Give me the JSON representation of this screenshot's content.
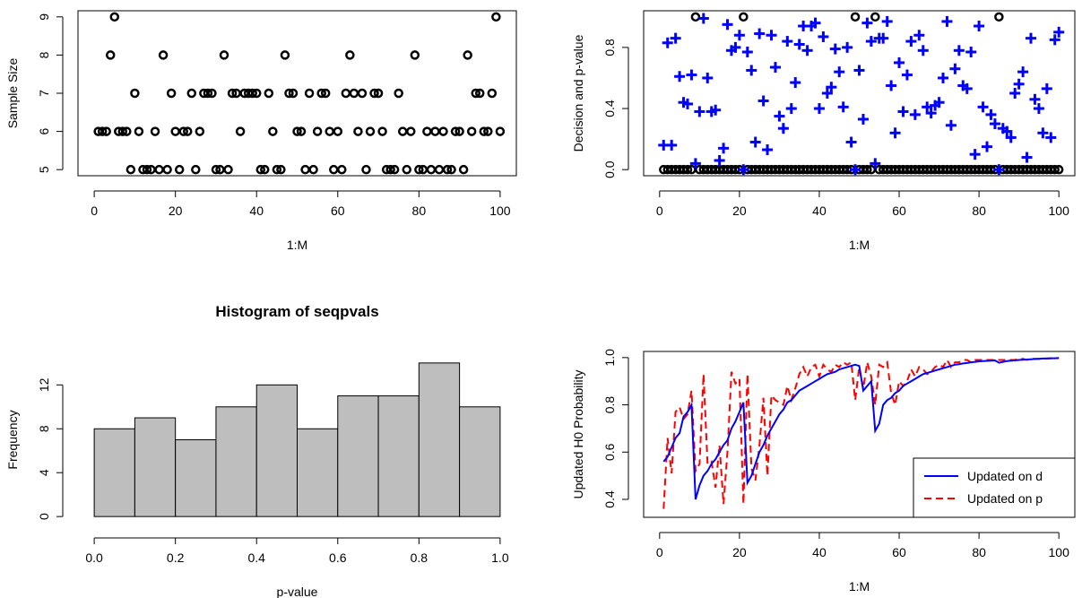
{
  "chart_data": [
    {
      "type": "scatter",
      "title": "",
      "xlabel": "1:M",
      "ylabel": "Sample Size",
      "xlim": [
        0,
        100
      ],
      "ylim": [
        5,
        9
      ],
      "xticks": [
        "0",
        "20",
        "40",
        "60",
        "80",
        "100"
      ],
      "yticks": [
        "5",
        "6",
        "7",
        "8",
        "9"
      ],
      "series": [
        {
          "marker": "circle",
          "color": "#000000",
          "x": [
            1,
            2,
            3,
            4,
            5,
            6,
            7,
            8,
            9,
            10,
            11,
            12,
            13,
            14,
            15,
            16,
            17,
            18,
            19,
            20,
            21,
            22,
            23,
            24,
            25,
            26,
            27,
            28,
            29,
            30,
            31,
            32,
            33,
            34,
            35,
            36,
            37,
            38,
            39,
            40,
            41,
            42,
            43,
            44,
            45,
            46,
            47,
            48,
            49,
            50,
            51,
            52,
            53,
            54,
            55,
            56,
            57,
            58,
            59,
            60,
            61,
            62,
            63,
            64,
            65,
            66,
            67,
            68,
            69,
            70,
            71,
            72,
            73,
            74,
            75,
            76,
            77,
            78,
            79,
            80,
            81,
            82,
            83,
            84,
            85,
            86,
            87,
            88,
            89,
            90,
            91,
            92,
            93,
            94,
            95,
            96,
            97,
            98,
            99,
            100
          ],
          "y": [
            6,
            6,
            6,
            8,
            9,
            6,
            6,
            6,
            5,
            7,
            6,
            5,
            5,
            5,
            6,
            5,
            8,
            5,
            7,
            6,
            5,
            6,
            6,
            7,
            5,
            6,
            7,
            7,
            7,
            5,
            5,
            8,
            5,
            7,
            7,
            6,
            7,
            7,
            7,
            7,
            5,
            5,
            7,
            6,
            5,
            5,
            8,
            7,
            7,
            6,
            6,
            5,
            7,
            5,
            6,
            7,
            7,
            6,
            5,
            6,
            5,
            7,
            8,
            7,
            6,
            7,
            5,
            6,
            7,
            7,
            6,
            5,
            5,
            5,
            7,
            6,
            5,
            6,
            8,
            5,
            5,
            6,
            5,
            6,
            5,
            6,
            5,
            5,
            6,
            6,
            5,
            8,
            6,
            7,
            7,
            6,
            6,
            7,
            9,
            6
          ]
        }
      ]
    },
    {
      "type": "scatter",
      "title": "",
      "xlabel": "1:M",
      "ylabel": "Decision and p-value",
      "xlim": [
        0,
        100
      ],
      "ylim": [
        0,
        1
      ],
      "xticks": [
        "0",
        "20",
        "40",
        "60",
        "80",
        "100"
      ],
      "yticks": [
        "0.0",
        "0.4",
        "0.8"
      ],
      "series": [
        {
          "marker": "circle",
          "color": "#000000",
          "x": [
            1,
            2,
            3,
            4,
            5,
            6,
            7,
            8,
            9,
            10,
            11,
            12,
            13,
            14,
            15,
            16,
            17,
            18,
            19,
            20,
            21,
            22,
            23,
            24,
            25,
            26,
            27,
            28,
            29,
            30,
            31,
            32,
            33,
            34,
            35,
            36,
            37,
            38,
            39,
            40,
            41,
            42,
            43,
            44,
            45,
            46,
            47,
            48,
            49,
            50,
            51,
            52,
            53,
            54,
            55,
            56,
            57,
            58,
            59,
            60,
            61,
            62,
            63,
            64,
            65,
            66,
            67,
            68,
            69,
            70,
            71,
            72,
            73,
            74,
            75,
            76,
            77,
            78,
            79,
            80,
            81,
            82,
            83,
            84,
            85,
            86,
            87,
            88,
            89,
            90,
            91,
            92,
            93,
            94,
            95,
            96,
            97,
            98,
            99,
            100
          ],
          "y": [
            0,
            0,
            0,
            0,
            0,
            0,
            0,
            0,
            1,
            0,
            0,
            0,
            0,
            0,
            0,
            0,
            0,
            0,
            0,
            0,
            1,
            0,
            0,
            0,
            0,
            0,
            0,
            0,
            0,
            0,
            0,
            0,
            0,
            0,
            0,
            0,
            0,
            0,
            0,
            0,
            0,
            0,
            0,
            0,
            0,
            0,
            0,
            0,
            1,
            0,
            0,
            0,
            0,
            1,
            0,
            0,
            0,
            0,
            0,
            0,
            0,
            0,
            0,
            0,
            0,
            0,
            0,
            0,
            0,
            0,
            0,
            0,
            0,
            0,
            0,
            0,
            0,
            0,
            0,
            0,
            0,
            0,
            0,
            0,
            1,
            0,
            0,
            0,
            0,
            0,
            0,
            0,
            0,
            0,
            0,
            0,
            0,
            0,
            0,
            0
          ]
        },
        {
          "marker": "plus",
          "color": "#0000ff",
          "x": [
            1,
            2,
            3,
            4,
            5,
            6,
            7,
            8,
            9,
            10,
            11,
            12,
            13,
            14,
            15,
            16,
            17,
            18,
            19,
            20,
            21,
            22,
            23,
            24,
            25,
            26,
            27,
            28,
            29,
            30,
            31,
            32,
            33,
            34,
            35,
            36,
            37,
            38,
            39,
            40,
            41,
            42,
            43,
            44,
            45,
            46,
            47,
            48,
            49,
            50,
            51,
            52,
            53,
            54,
            55,
            56,
            57,
            58,
            59,
            60,
            61,
            62,
            63,
            64,
            65,
            66,
            67,
            68,
            69,
            70,
            71,
            72,
            73,
            74,
            75,
            76,
            77,
            78,
            79,
            80,
            81,
            82,
            83,
            84,
            85,
            86,
            87,
            88,
            89,
            90,
            91,
            92,
            93,
            94,
            95,
            96,
            97,
            98,
            99,
            100
          ],
          "y": [
            0.16,
            0.83,
            0.16,
            0.86,
            0.61,
            0.44,
            0.43,
            0.62,
            0.04,
            0.38,
            0.99,
            0.6,
            0.38,
            0.39,
            0.06,
            0.14,
            0.95,
            0.78,
            0.8,
            0.88,
            0.0,
            0.77,
            0.65,
            0.18,
            0.89,
            0.45,
            0.13,
            0.88,
            0.67,
            0.35,
            0.27,
            0.84,
            0.4,
            0.57,
            0.82,
            0.94,
            0.78,
            0.94,
            0.96,
            0.4,
            0.87,
            0.5,
            0.54,
            0.79,
            0.64,
            0.41,
            0.8,
            0.18,
            0.0,
            0.65,
            0.33,
            0.96,
            0.84,
            0.04,
            0.86,
            0.86,
            0.97,
            0.55,
            0.24,
            0.7,
            0.38,
            0.62,
            0.84,
            0.36,
            0.88,
            0.78,
            0.41,
            0.37,
            0.42,
            0.44,
            0.6,
            0.97,
            0.29,
            0.66,
            0.78,
            0.55,
            0.53,
            0.77,
            0.1,
            0.94,
            0.41,
            0.15,
            0.36,
            0.3,
            0.0,
            0.27,
            0.25,
            0.21,
            0.5,
            0.56,
            0.64,
            0.08,
            0.86,
            0.46,
            0.4,
            0.24,
            0.53,
            0.21,
            0.85,
            0.9
          ]
        }
      ]
    },
    {
      "type": "bar",
      "title": "Histogram of seqpvals",
      "xlabel": "p-value",
      "ylabel": "Frequency",
      "xlim": [
        0,
        1
      ],
      "ylim": [
        0,
        14
      ],
      "xticks": [
        "0.0",
        "0.2",
        "0.4",
        "0.6",
        "0.8",
        "1.0"
      ],
      "yticks": [
        "0",
        "4",
        "8",
        "12"
      ],
      "bins": [
        [
          0.0,
          0.1
        ],
        [
          0.1,
          0.2
        ],
        [
          0.2,
          0.3
        ],
        [
          0.3,
          0.4
        ],
        [
          0.4,
          0.5
        ],
        [
          0.5,
          0.6
        ],
        [
          0.6,
          0.7
        ],
        [
          0.7,
          0.8
        ],
        [
          0.8,
          0.9
        ],
        [
          0.9,
          1.0
        ]
      ],
      "values": [
        8,
        9,
        7,
        10,
        12,
        8,
        11,
        11,
        14,
        10
      ],
      "fill": "#bebebe"
    },
    {
      "type": "line",
      "title": "",
      "xlabel": "1:M",
      "ylabel": "Updated H0 Probability",
      "xlim": [
        0,
        100
      ],
      "ylim": [
        0.35,
        1.0
      ],
      "xticks": [
        "0",
        "20",
        "40",
        "60",
        "80",
        "100"
      ],
      "yticks": [
        "0.4",
        "0.6",
        "0.8",
        "1.0"
      ],
      "legend_position": "bottom-right",
      "series": [
        {
          "name": "Updated on d",
          "color": "#0000ff",
          "dash": "solid",
          "x": [
            1,
            2,
            3,
            4,
            5,
            6,
            7,
            8,
            9,
            10,
            11,
            12,
            13,
            14,
            15,
            16,
            17,
            18,
            19,
            20,
            21,
            22,
            23,
            24,
            25,
            26,
            27,
            28,
            29,
            30,
            31,
            32,
            33,
            34,
            35,
            36,
            37,
            38,
            39,
            40,
            41,
            42,
            43,
            44,
            45,
            46,
            47,
            48,
            49,
            50,
            51,
            52,
            53,
            54,
            55,
            56,
            57,
            58,
            59,
            60,
            61,
            62,
            63,
            64,
            65,
            66,
            67,
            68,
            69,
            70,
            71,
            72,
            73,
            74,
            75,
            76,
            77,
            78,
            79,
            80,
            81,
            82,
            83,
            84,
            85,
            86,
            87,
            88,
            89,
            90,
            91,
            92,
            93,
            94,
            95,
            96,
            97,
            98,
            99,
            100
          ],
          "y": [
            0.56,
            0.58,
            0.62,
            0.66,
            0.68,
            0.75,
            0.77,
            0.8,
            0.4,
            0.46,
            0.5,
            0.52,
            0.55,
            0.57,
            0.6,
            0.63,
            0.65,
            0.7,
            0.73,
            0.77,
            0.81,
            0.47,
            0.5,
            0.55,
            0.6,
            0.63,
            0.67,
            0.7,
            0.73,
            0.76,
            0.78,
            0.81,
            0.82,
            0.84,
            0.86,
            0.87,
            0.88,
            0.89,
            0.9,
            0.91,
            0.92,
            0.93,
            0.935,
            0.94,
            0.95,
            0.955,
            0.96,
            0.965,
            0.97,
            0.965,
            0.86,
            0.88,
            0.9,
            0.69,
            0.72,
            0.8,
            0.82,
            0.83,
            0.85,
            0.86,
            0.88,
            0.89,
            0.9,
            0.91,
            0.92,
            0.93,
            0.935,
            0.94,
            0.945,
            0.95,
            0.955,
            0.96,
            0.965,
            0.97,
            0.972,
            0.975,
            0.977,
            0.98,
            0.982,
            0.984,
            0.985,
            0.986,
            0.987,
            0.988,
            0.978,
            0.982,
            0.985,
            0.987,
            0.988,
            0.99,
            0.991,
            0.992,
            0.993,
            0.994,
            0.995,
            0.996,
            0.996,
            0.997,
            0.997,
            0.998
          ]
        },
        {
          "name": "Updated on p",
          "color": "#ff0000",
          "dash": "dashed",
          "x": [
            1,
            2,
            3,
            4,
            5,
            6,
            7,
            8,
            9,
            10,
            11,
            12,
            13,
            14,
            15,
            16,
            17,
            18,
            19,
            20,
            21,
            22,
            23,
            24,
            25,
            26,
            27,
            28,
            29,
            30,
            31,
            32,
            33,
            34,
            35,
            36,
            37,
            38,
            39,
            40,
            41,
            42,
            43,
            44,
            45,
            46,
            47,
            48,
            49,
            50,
            51,
            52,
            53,
            54,
            55,
            56,
            57,
            58,
            59,
            60,
            61,
            62,
            63,
            64,
            65,
            66,
            67,
            68,
            69,
            70,
            71,
            72,
            73,
            74,
            75,
            76,
            77,
            78,
            79,
            80,
            81,
            82,
            83,
            84,
            85,
            86,
            87,
            88,
            89,
            90,
            91,
            92,
            93,
            94,
            95,
            96,
            97,
            98,
            99,
            100
          ],
          "y": [
            0.36,
            0.66,
            0.51,
            0.77,
            0.79,
            0.74,
            0.76,
            0.86,
            0.52,
            0.55,
            0.93,
            0.55,
            0.56,
            0.45,
            0.63,
            0.38,
            0.6,
            0.94,
            0.89,
            0.91,
            0.38,
            0.93,
            0.53,
            0.48,
            0.63,
            0.83,
            0.5,
            0.84,
            0.82,
            0.81,
            0.8,
            0.88,
            0.82,
            0.87,
            0.93,
            0.96,
            0.92,
            0.96,
            0.97,
            0.92,
            0.97,
            0.95,
            0.94,
            0.97,
            0.96,
            0.98,
            0.97,
            0.98,
            0.82,
            0.96,
            0.87,
            0.98,
            0.92,
            0.8,
            0.97,
            0.96,
            0.98,
            0.85,
            0.8,
            0.9,
            0.88,
            0.9,
            0.95,
            0.92,
            0.96,
            0.95,
            0.93,
            0.94,
            0.96,
            0.97,
            0.96,
            0.99,
            0.96,
            0.98,
            0.98,
            0.99,
            0.99,
            0.98,
            0.99,
            0.99,
            0.99,
            0.99,
            0.99,
            0.99,
            0.99,
            0.99,
            0.99,
            0.99,
            0.99,
            0.995,
            0.995,
            0.99,
            0.995,
            0.995,
            0.995,
            0.996,
            0.996,
            0.997,
            0.997,
            0.998
          ]
        }
      ]
    }
  ]
}
